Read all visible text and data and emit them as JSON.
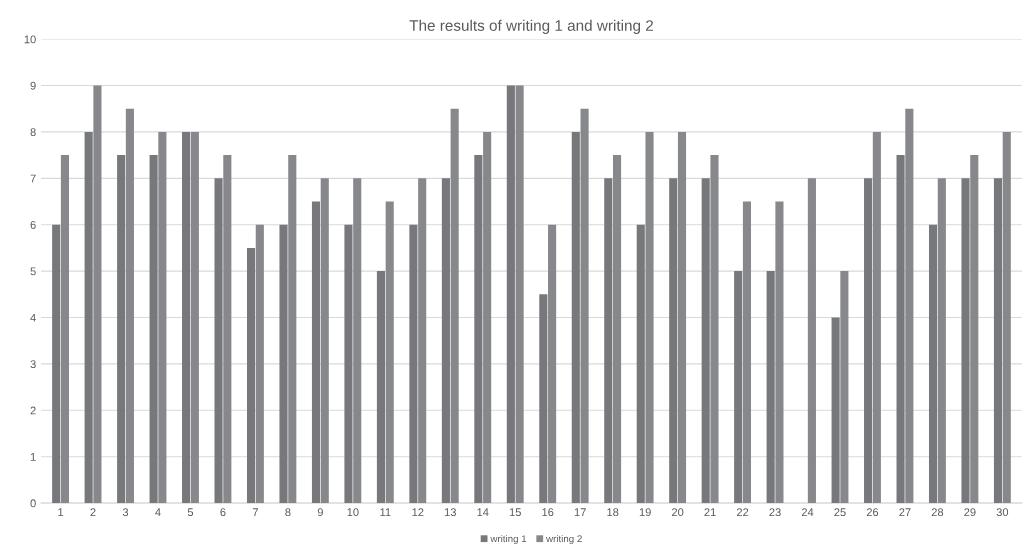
{
  "chart_data": {
    "type": "bar",
    "title": "The results of writing 1 and writing 2",
    "categories": [
      "1",
      "2",
      "3",
      "4",
      "5",
      "6",
      "7",
      "8",
      "9",
      "10",
      "11",
      "12",
      "13",
      "14",
      "15",
      "16",
      "17",
      "18",
      "19",
      "20",
      "21",
      "22",
      "23",
      "24",
      "25",
      "26",
      "27",
      "28",
      "29",
      "30"
    ],
    "series": [
      {
        "name": "writing 1",
        "color": "#77787c",
        "values": [
          6,
          8,
          7.5,
          7.5,
          8,
          7,
          5.5,
          6,
          6.5,
          6,
          5,
          6,
          7,
          7.5,
          9,
          4.5,
          8,
          7,
          6,
          7,
          7,
          5,
          5,
          null,
          4,
          7,
          7.5,
          6,
          7,
          7
        ]
      },
      {
        "name": "writing 2",
        "color": "#87888c",
        "values": [
          7.5,
          9,
          8.5,
          8,
          8,
          7.5,
          6,
          7.5,
          7,
          7,
          6.5,
          7,
          8.5,
          8,
          9,
          6,
          8.5,
          7.5,
          8,
          8,
          7.5,
          6.5,
          6.5,
          7,
          5,
          8,
          8.5,
          7,
          7.5,
          8
        ]
      }
    ],
    "ylim": [
      0,
      10
    ],
    "yticks": [
      0,
      1,
      2,
      3,
      4,
      5,
      6,
      7,
      8,
      9,
      10
    ],
    "grid": "y",
    "legend": "bottom"
  }
}
